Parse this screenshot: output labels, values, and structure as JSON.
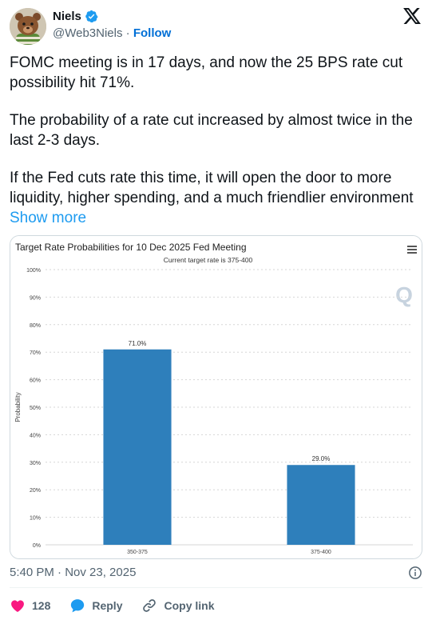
{
  "author": {
    "name": "Niels",
    "handle": "@Web3Niels",
    "separator": "·",
    "follow_label": "Follow"
  },
  "tweet": {
    "paragraphs": [
      "FOMC meeting is in 17 days, and now the 25 BPS rate cut possibility hit 71%.",
      "The probability of a rate cut increased by almost twice in the last 2-3 days.",
      "If the Fed cuts rate this time, it will open the door to more liquidity, higher spending, and a much friendlier environment"
    ],
    "show_more": "Show more",
    "timestamp": "5:40 PM · Nov 23, 2025"
  },
  "actions": {
    "like_count": "128",
    "reply_label": "Reply",
    "copy_link_label": "Copy link"
  },
  "colors": {
    "like": "#f91880",
    "reply": "#1d9bf0",
    "bar": "#2e7fbb",
    "link": "#1d9bf0"
  },
  "chart_data": {
    "type": "bar",
    "title": "Target Rate Probabilities for 10 Dec 2025 Fed Meeting",
    "subtitle": "Current target rate is 375-400",
    "ylabel": "Probability",
    "xlabel": "",
    "categories": [
      "350-375",
      "375-400"
    ],
    "values": [
      71.0,
      29.0
    ],
    "value_labels": [
      "71.0%",
      "29.0%"
    ],
    "ylim": [
      0,
      100
    ],
    "yticks": [
      "0%",
      "10%",
      "20%",
      "30%",
      "40%",
      "50%",
      "60%",
      "70%",
      "80%",
      "90%",
      "100%"
    ],
    "grid": true
  }
}
